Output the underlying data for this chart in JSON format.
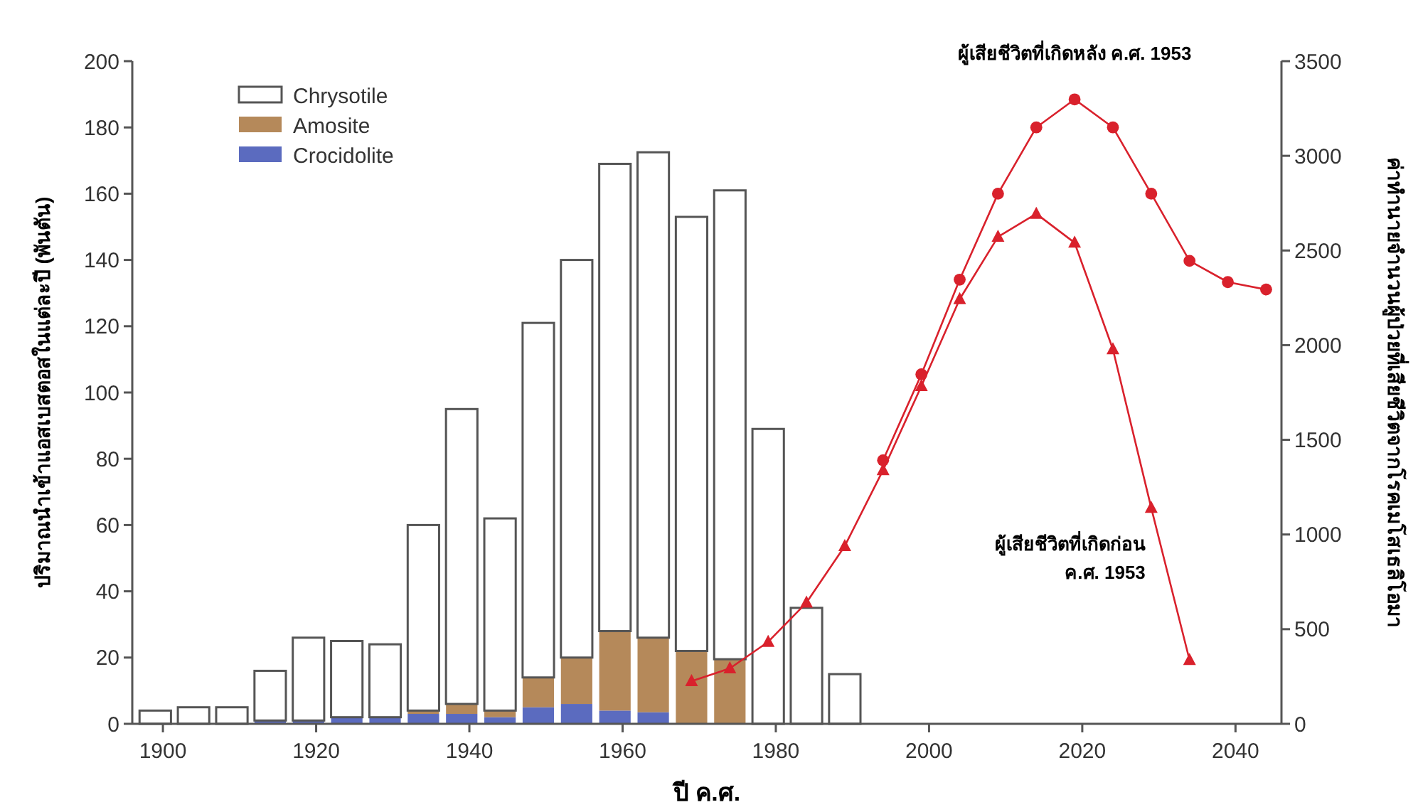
{
  "chart_data": {
    "type": "bar",
    "stacked": true,
    "xlabel": "ปี ค.ศ.",
    "ylabel": "ปริมาณนำเข้าแอสเบสตอสในแต่ละปี (พันตัน)",
    "y2label": "ค่าทำนายจำนวนผู้ป่วยที่เสียชีวิตจากโรคเมโสเธลิโอมา",
    "x": [
      1899,
      1904,
      1909,
      1914,
      1919,
      1924,
      1929,
      1934,
      1939,
      1944,
      1949,
      1954,
      1959,
      1964,
      1969,
      1974,
      1979,
      1984,
      1989
    ],
    "xlim": [
      1896,
      2046
    ],
    "xticks": [
      1900,
      1920,
      1940,
      1960,
      1980,
      2000,
      2020,
      2040
    ],
    "ylim": [
      0,
      200
    ],
    "yticks": [
      0,
      20,
      40,
      60,
      80,
      100,
      120,
      140,
      160,
      180,
      200
    ],
    "y2lim": [
      0,
      3500
    ],
    "y2ticks": [
      0,
      500,
      1000,
      1500,
      2000,
      2500,
      3000,
      3500
    ],
    "grid": false,
    "legend": "top left",
    "series": [
      {
        "name": "Crocidolite",
        "color": "#5b6bbf",
        "values": [
          0,
          0,
          0,
          1,
          1,
          2,
          2,
          3,
          3,
          2,
          5,
          6,
          4,
          3.5,
          0,
          0,
          0,
          0,
          0
        ]
      },
      {
        "name": "Amosite",
        "color": "#b5895a",
        "values": [
          0,
          0,
          0,
          0,
          0,
          0,
          0,
          1,
          3,
          2,
          9,
          14,
          24,
          22.5,
          22,
          19.5,
          0,
          0,
          0
        ]
      },
      {
        "name": "Chrysotile",
        "color": "#ffffff",
        "values": [
          4,
          5,
          5,
          15,
          25,
          23,
          22,
          56,
          89,
          58,
          107,
          120,
          141,
          146.5,
          131,
          141.5,
          89,
          35,
          15
        ]
      },
      {
        "type": "line",
        "axis": "y2",
        "marker": "triangle",
        "name": "ผู้เสียชีวิตที่เกิดก่อน ค.ศ. 1953",
        "color": "#d9212c",
        "x": [
          1969,
          1974,
          1979,
          1984,
          1989,
          1994,
          1999,
          2004,
          2009,
          2014,
          2019,
          2024,
          2029,
          2034
        ],
        "values": [
          225,
          293,
          433,
          640,
          939,
          1340,
          1784,
          2243,
          2572,
          2694,
          2541,
          1978,
          1141,
          337
        ]
      },
      {
        "type": "line",
        "axis": "y2",
        "marker": "circle",
        "name": "ผู้เสียชีวิตที่เกิดหลัง ค.ศ. 1953",
        "color": "#d9212c",
        "x": [
          1994,
          1999,
          2004,
          2009,
          2014,
          2019,
          2024,
          2029,
          2034,
          2039,
          2044
        ],
        "values": [
          1392,
          1846,
          2346,
          2800,
          3150,
          3298,
          3150,
          2800,
          2445,
          2333,
          2294
        ]
      }
    ]
  }
}
